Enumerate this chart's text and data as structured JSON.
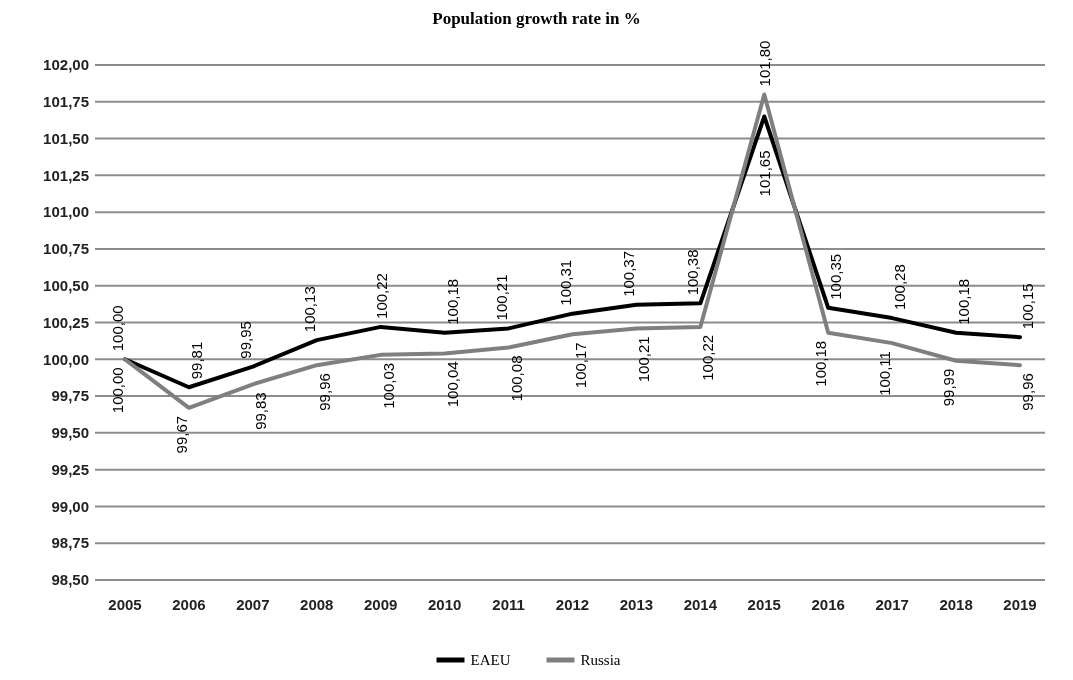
{
  "chart_data": {
    "type": "line",
    "title": "Population growth rate in %",
    "categories": [
      "2005",
      "2006",
      "2007",
      "2008",
      "2009",
      "2010",
      "2011",
      "2012",
      "2013",
      "2014",
      "2015",
      "2016",
      "2017",
      "2018",
      "2019"
    ],
    "series": [
      {
        "name": "EAEU",
        "color": "#000000",
        "values": [
          100.0,
          99.81,
          99.95,
          100.13,
          100.22,
          100.18,
          100.21,
          100.31,
          100.37,
          100.38,
          101.65,
          100.35,
          100.28,
          100.18,
          100.15
        ],
        "value_labels": [
          "100,00",
          "99,81",
          "99,95",
          "100,13",
          "100,22",
          "100,18",
          "100,21",
          "100,31",
          "100,37",
          "100,38",
          "101,65",
          "100,35",
          "100,28",
          "100,18",
          "100,15"
        ]
      },
      {
        "name": "Russia",
        "color": "#7f7f7f",
        "values": [
          100.0,
          99.67,
          99.83,
          99.96,
          100.03,
          100.04,
          100.08,
          100.17,
          100.21,
          100.22,
          101.8,
          100.18,
          100.11,
          99.99,
          99.96
        ],
        "value_labels": [
          "100,00",
          "99,67",
          "99,83",
          "99,96",
          "100,03",
          "100,04",
          "100,08",
          "100,17",
          "100,21",
          "100,22",
          "101,80",
          "100,18",
          "100,11",
          "99,99",
          "99,96"
        ]
      }
    ],
    "ylim": [
      98.5,
      102.0
    ],
    "yticks": [
      {
        "value": 98.5,
        "label": "98,50"
      },
      {
        "value": 98.75,
        "label": "98,75"
      },
      {
        "value": 99,
        "label": "99,00"
      },
      {
        "value": 99.25,
        "label": "99,25"
      },
      {
        "value": 99.5,
        "label": "99,50"
      },
      {
        "value": 99.75,
        "label": "99,75"
      },
      {
        "value": 100,
        "label": "100,00"
      },
      {
        "value": 100.25,
        "label": "100,25"
      },
      {
        "value": 100.5,
        "label": "100,50"
      },
      {
        "value": 100.75,
        "label": "100,75"
      },
      {
        "value": 101,
        "label": "101,00"
      },
      {
        "value": 101.25,
        "label": "101,25"
      },
      {
        "value": 101.5,
        "label": "101,50"
      },
      {
        "value": 101.75,
        "label": "101,75"
      },
      {
        "value": 102,
        "label": "102,00"
      }
    ],
    "grid": "y",
    "legend": "bottom",
    "marker": "none",
    "line_style": "solid"
  }
}
